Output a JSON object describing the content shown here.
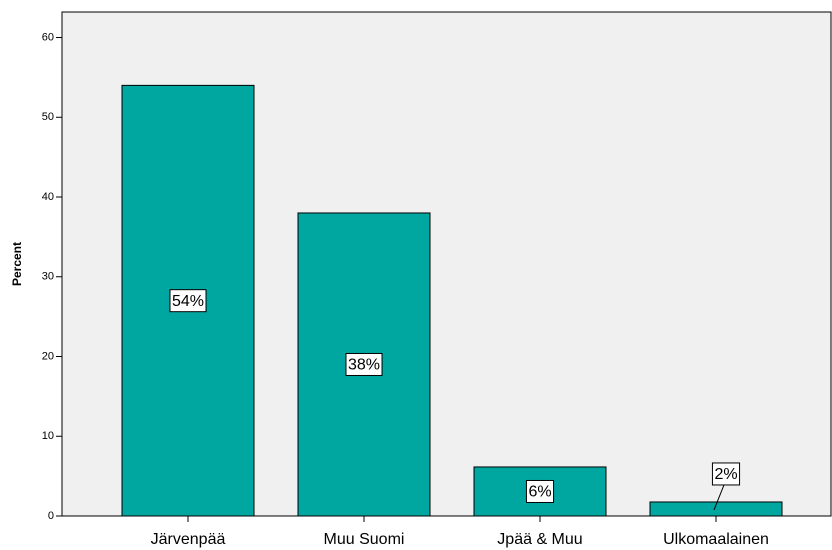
{
  "chart_data": {
    "type": "bar",
    "y_label": "Percent",
    "categories": [
      "Järvenpää",
      "Muu Suomi",
      "Jpää & Muu",
      "Ulkomaalainen"
    ],
    "values": [
      54,
      38,
      6.15,
      1.76
    ],
    "value_labels": [
      "54%",
      "38%",
      "6%",
      "2%"
    ],
    "color": "#00a6a0",
    "ylim": [
      0,
      63.2
    ],
    "yticks": [
      0,
      10,
      20,
      30,
      40,
      50,
      60
    ]
  }
}
